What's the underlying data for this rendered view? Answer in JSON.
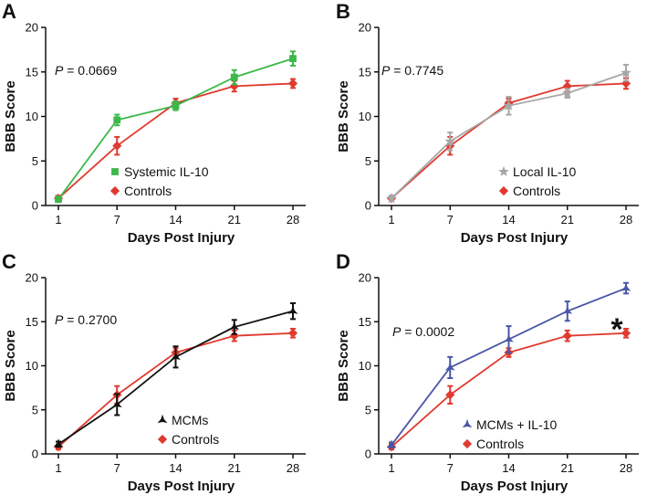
{
  "colors": {
    "systemic": "#3cb84a",
    "controls": "#e03a2f",
    "local": "#a7a7a7",
    "mcms": "#111111",
    "mcms_il10": "#4a56a6"
  },
  "chart_data": [
    {
      "type": "line",
      "panel": "A",
      "xlabel": "Days Post Injury",
      "ylabel": "BBB Score",
      "categories": [
        "1",
        "7",
        "14",
        "21",
        "28"
      ],
      "ylim": [
        0,
        20
      ],
      "yticks": [
        "0",
        "5",
        "10",
        "15",
        "20"
      ],
      "p_label": "P",
      "p_value": " = 0.0669",
      "legend_position": "bottom-center",
      "series": [
        {
          "name": "Systemic IL-10",
          "color_key": "systemic",
          "marker": "square",
          "values": [
            0.7,
            9.6,
            11.2,
            14.4,
            16.5
          ],
          "errors": [
            0.3,
            0.6,
            0.5,
            0.8,
            0.8
          ]
        },
        {
          "name": "Controls",
          "color_key": "controls",
          "marker": "diamond",
          "values": [
            0.8,
            6.7,
            11.5,
            13.4,
            13.7
          ],
          "errors": [
            0.3,
            1.0,
            0.5,
            0.6,
            0.5
          ]
        }
      ]
    },
    {
      "type": "line",
      "panel": "B",
      "xlabel": "Days Post Injury",
      "ylabel": "BBB Score",
      "categories": [
        "1",
        "7",
        "14",
        "21",
        "28"
      ],
      "ylim": [
        0,
        20
      ],
      "yticks": [
        "0",
        "5",
        "10",
        "15",
        "20"
      ],
      "p_label": "P",
      "p_value": " = 0.7745",
      "legend_position": "bottom-center",
      "series": [
        {
          "name": "Local IL-10",
          "color_key": "local",
          "marker": "star",
          "values": [
            0.8,
            7.2,
            11.2,
            12.6,
            14.9
          ],
          "errors": [
            0.3,
            1.0,
            1.0,
            0.5,
            0.9
          ]
        },
        {
          "name": "Controls",
          "color_key": "controls",
          "marker": "diamond",
          "values": [
            0.8,
            6.7,
            11.5,
            13.4,
            13.7
          ],
          "errors": [
            0.3,
            1.0,
            0.5,
            0.6,
            0.6
          ]
        }
      ]
    },
    {
      "type": "line",
      "panel": "C",
      "xlabel": "Days Post Injury",
      "ylabel": "BBB Score",
      "categories": [
        "1",
        "7",
        "14",
        "21",
        "28"
      ],
      "ylim": [
        0,
        20
      ],
      "yticks": [
        "0",
        "5",
        "10",
        "15",
        "20"
      ],
      "p_label": "P",
      "p_value": " = 0.2700",
      "legend_position": "bottom-center",
      "series": [
        {
          "name": "MCMs",
          "color_key": "mcms",
          "marker": "tristar",
          "values": [
            1.1,
            5.6,
            11.0,
            14.4,
            16.2
          ],
          "errors": [
            0.3,
            1.2,
            1.2,
            0.8,
            0.9
          ]
        },
        {
          "name": "Controls",
          "color_key": "controls",
          "marker": "diamond",
          "values": [
            0.8,
            6.7,
            11.5,
            13.4,
            13.7
          ],
          "errors": [
            0.3,
            1.0,
            0.5,
            0.6,
            0.5
          ]
        }
      ]
    },
    {
      "type": "line",
      "panel": "D",
      "xlabel": "Days Post Injury",
      "ylabel": "BBB Score",
      "categories": [
        "1",
        "7",
        "14",
        "21",
        "28"
      ],
      "ylim": [
        0,
        20
      ],
      "yticks": [
        "0",
        "5",
        "10",
        "15",
        "20"
      ],
      "p_label": "P",
      "p_value": " = 0.0002",
      "legend_position": "bottom-center",
      "annotation": "*",
      "series": [
        {
          "name": "MCMs + IL-10",
          "color_key": "mcms_il10",
          "marker": "tristar",
          "values": [
            1.0,
            9.8,
            13.0,
            16.2,
            18.8
          ],
          "errors": [
            0.3,
            1.2,
            1.5,
            1.1,
            0.6
          ]
        },
        {
          "name": "Controls",
          "color_key": "controls",
          "marker": "diamond",
          "values": [
            0.8,
            6.7,
            11.5,
            13.4,
            13.7
          ],
          "errors": [
            0.3,
            1.0,
            0.5,
            0.6,
            0.5
          ]
        }
      ]
    }
  ]
}
